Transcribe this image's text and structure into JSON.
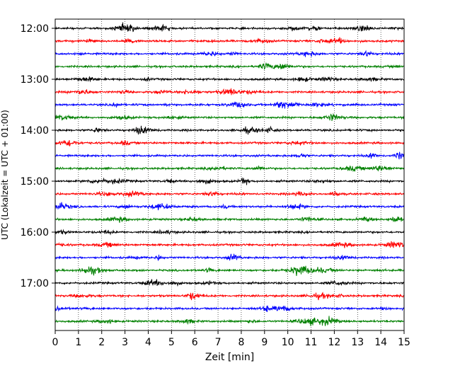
{
  "chart_data": {
    "type": "line",
    "title": "",
    "xlabel": "Zeit  [min]",
    "ylabel": "UTC (Lokalzeit = UTC + 01:00)",
    "xlim": [
      0,
      15
    ],
    "x_ticks": [
      "0",
      "1",
      "2",
      "3",
      "4",
      "5",
      "6",
      "7",
      "8",
      "9",
      "10",
      "11",
      "12",
      "13",
      "14",
      "15"
    ],
    "y_ticks": [
      "12:00",
      "13:00",
      "14:00",
      "15:00",
      "16:00",
      "17:00"
    ],
    "trace_start_times": [
      "12:00",
      "12:15",
      "12:30",
      "12:45",
      "13:00",
      "13:15",
      "13:30",
      "13:45",
      "14:00",
      "14:15",
      "14:30",
      "14:45",
      "15:00",
      "15:15",
      "15:30",
      "15:45",
      "16:00",
      "16:15",
      "16:30",
      "16:45",
      "17:00",
      "17:15",
      "17:30",
      "17:45"
    ],
    "trace_colors": [
      "#000000",
      "#ff0000",
      "#0000ff",
      "#008000"
    ],
    "grid": "vertical dotted at each minute"
  }
}
